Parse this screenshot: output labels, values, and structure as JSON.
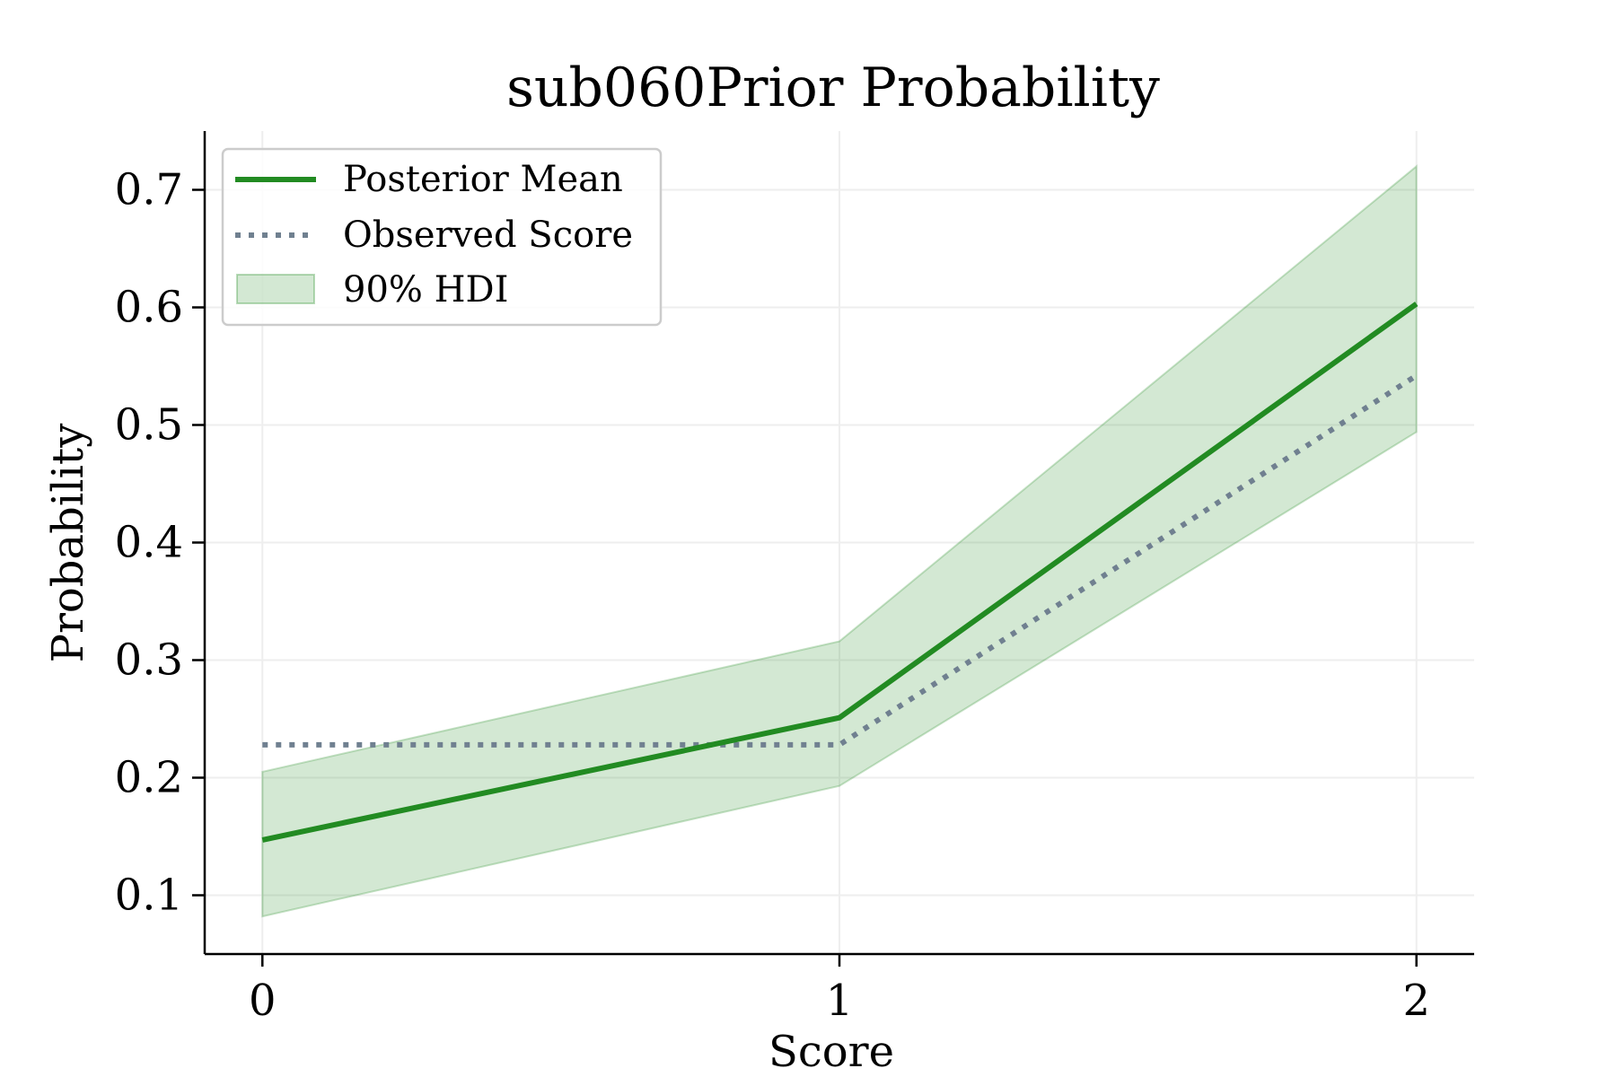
{
  "chart_data": {
    "type": "line",
    "title": "sub060Prior Probability",
    "xlabel": "Score",
    "ylabel": "Probability",
    "x": [
      0,
      1,
      2
    ],
    "xticks": [
      "0",
      "1",
      "2"
    ],
    "xlim": [
      -0.1,
      2.1
    ],
    "yticks": [
      "0.1",
      "0.2",
      "0.3",
      "0.4",
      "0.5",
      "0.6",
      "0.7"
    ],
    "ylim": [
      0.05,
      0.75
    ],
    "grid": true,
    "legend_position": "upper-left",
    "series": [
      {
        "name": "Posterior Mean",
        "style": "solid",
        "color": "#228b22",
        "values": [
          0.147,
          0.251,
          0.603
        ]
      },
      {
        "name": "Observed Score",
        "style": "dotted",
        "color": "#708090",
        "values": [
          0.228,
          0.228,
          0.542
        ]
      }
    ],
    "band": {
      "name": "90% HDI",
      "color": "#228b22",
      "lower": [
        0.082,
        0.193,
        0.494
      ],
      "upper": [
        0.205,
        0.316,
        0.72
      ]
    }
  }
}
